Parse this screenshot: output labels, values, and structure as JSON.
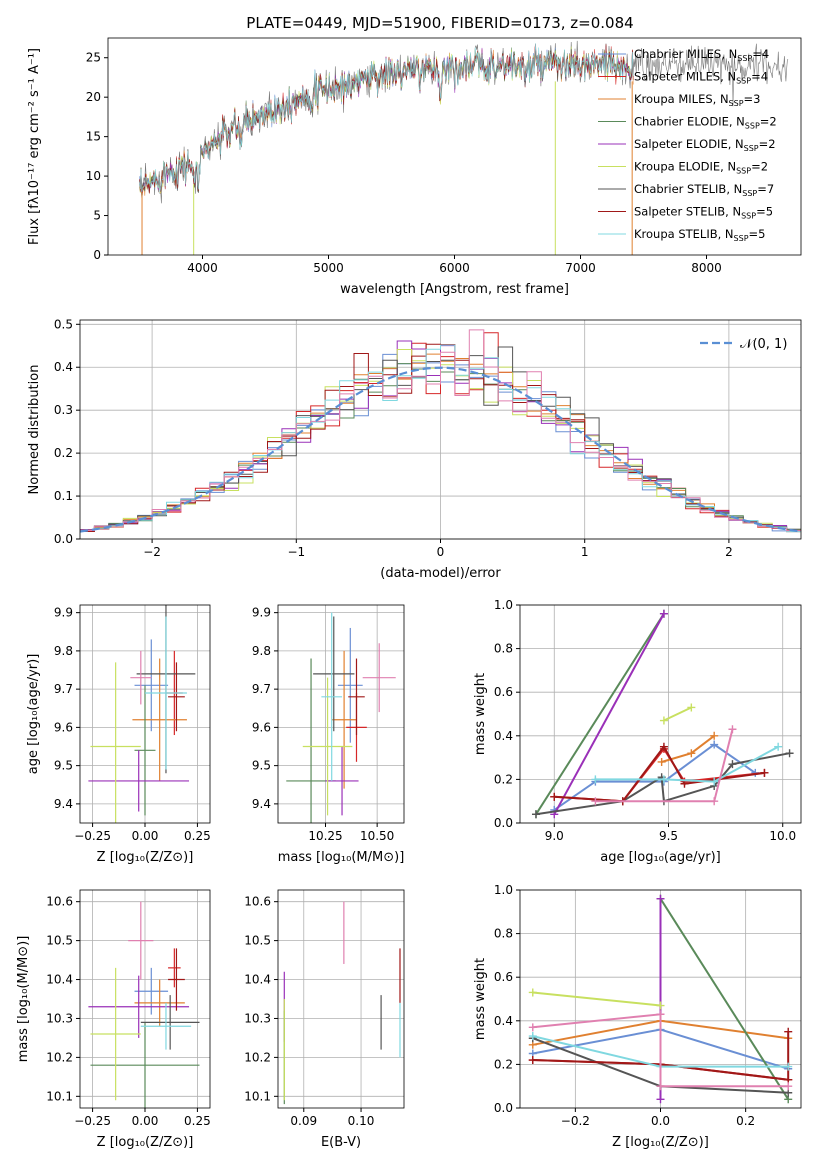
{
  "colors": {
    "Chabrier MILES": "#6a8fd4",
    "Salpeter MILES": "#d62728",
    "Kroupa MILES": "#e08030",
    "Chabrier ELODIE": "#5a8a5a",
    "Salpeter ELODIE": "#9a30b8",
    "Kroupa ELODIE": "#c8e060",
    "Chabrier STELIB": "#555555",
    "Salpeter STELIB": "#a01818",
    "Kroupa STELIB": "#80d8e0",
    "pink": "#e080b0",
    "gauss": "#5a8fd4"
  },
  "chart_data": [
    {
      "id": "spectrum",
      "type": "line",
      "title": "PLATE=0449, MJD=51900, FIBERID=0173, z=0.084",
      "xlabel": "wavelength [Angstrom, rest frame]",
      "ylabel": "Flux [fλ10⁻¹⁷ erg cm⁻² s⁻¹ A⁻¹]",
      "xlim": [
        3250,
        8750
      ],
      "ylim": [
        0,
        27.5
      ],
      "xticks": [
        4000,
        5000,
        6000,
        7000,
        8000
      ],
      "yticks": [
        0,
        5,
        10,
        15,
        20,
        25
      ],
      "grid": false,
      "legend_position": "top-right",
      "legend": [
        {
          "name": "Chabrier MILES",
          "sub": "N",
          "subscript": "SSP",
          "val": "=4"
        },
        {
          "name": "Salpeter MILES",
          "sub": "N",
          "subscript": "SSP",
          "val": "=4"
        },
        {
          "name": "Kroupa MILES",
          "sub": "N",
          "subscript": "SSP",
          "val": "=3"
        },
        {
          "name": "Chabrier ELODIE",
          "sub": "N",
          "subscript": "SSP",
          "val": "=2"
        },
        {
          "name": "Salpeter ELODIE",
          "sub": "N",
          "subscript": "SSP",
          "val": "=2"
        },
        {
          "name": "Kroupa ELODIE",
          "sub": "N",
          "subscript": "SSP",
          "val": "=2"
        },
        {
          "name": "Chabrier STELIB",
          "sub": "N",
          "subscript": "SSP",
          "val": "=7"
        },
        {
          "name": "Salpeter STELIB",
          "sub": "N",
          "subscript": "SSP",
          "val": "=5"
        },
        {
          "name": "Kroupa STELIB",
          "sub": "N",
          "subscript": "SSP",
          "val": "=5"
        }
      ],
      "continuum": [
        [
          3500,
          8.0
        ],
        [
          3700,
          10.5
        ],
        [
          3900,
          11.5
        ],
        [
          4000,
          13.0
        ],
        [
          4150,
          15.0
        ],
        [
          4300,
          16.5
        ],
        [
          4500,
          18.0
        ],
        [
          4700,
          19.5
        ],
        [
          4900,
          20.5
        ],
        [
          5100,
          21.5
        ],
        [
          5300,
          22.5
        ],
        [
          5500,
          23.0
        ],
        [
          5800,
          23.5
        ],
        [
          6000,
          23.8
        ],
        [
          6200,
          24.0
        ],
        [
          6500,
          24.0
        ],
        [
          6800,
          24.0
        ],
        [
          7100,
          24.0
        ],
        [
          7400,
          24.0
        ],
        [
          7700,
          24.0
        ],
        [
          8000,
          24.0
        ],
        [
          8300,
          24.0
        ],
        [
          8650,
          24.0
        ]
      ],
      "dips": [
        [
          3934,
          9.0
        ],
        [
          3968,
          8.5
        ],
        [
          4300,
          13.5
        ],
        [
          5175,
          20.5
        ],
        [
          5890,
          21.0
        ],
        [
          6563,
          22.5
        ]
      ],
      "spikes": [
        [
          6800,
          0
        ],
        [
          7410,
          0
        ]
      ],
      "model_range": [
        3500,
        7420
      ],
      "data_range": [
        3500,
        8650
      ]
    },
    {
      "id": "residuals",
      "type": "area",
      "xlabel": "(data-model)/error",
      "ylabel": "Normed distribution",
      "xlim": [
        -2.5,
        2.5
      ],
      "ylim": [
        0,
        0.51
      ],
      "xticks": [
        -2,
        -1,
        0,
        1,
        2
      ],
      "yticks": [
        0.0,
        0.1,
        0.2,
        0.3,
        0.4,
        0.5
      ],
      "grid": true,
      "legend_position": "top-right",
      "legend": [
        "𝒩(0, 1)"
      ],
      "bin_width": 0.1
    },
    {
      "id": "age-vs-Z",
      "type": "scatter",
      "xlabel": "Z [log₁₀(Z/Z⊙)]",
      "ylabel": "age  [log₁₀(age/yr)]",
      "xlim": [
        -0.31,
        0.31
      ],
      "ylim": [
        9.35,
        9.92
      ],
      "xticks": [
        -0.25,
        0.0,
        0.25
      ],
      "yticks": [
        9.4,
        9.5,
        9.6,
        9.7,
        9.8,
        9.9
      ],
      "points": [
        {
          "model": "Chabrier MILES",
          "x": 0.03,
          "xerr": 0.08,
          "y": 9.71,
          "yerr": 0.12
        },
        {
          "model": "Salpeter MILES",
          "x": 0.14,
          "xerr": 0.04,
          "y": 9.69,
          "yerr": 0.11
        },
        {
          "model": "Kroupa MILES",
          "x": 0.07,
          "xerr": 0.13,
          "y": 9.62,
          "yerr": 0.16
        },
        {
          "model": "Chabrier ELODIE",
          "x": 0.0,
          "xerr": 0.05,
          "y": 9.54,
          "yerr": 0.17
        },
        {
          "model": "Salpeter ELODIE",
          "x": -0.03,
          "xerr": 0.24,
          "y": 9.46,
          "yerr": 0.08
        },
        {
          "model": "Kroupa ELODIE",
          "x": -0.14,
          "xerr": 0.12,
          "y": 9.55,
          "yerr": 0.22
        },
        {
          "model": "Chabrier STELIB",
          "x": 0.1,
          "xerr": 0.14,
          "y": 9.74,
          "yerr": 0.26
        },
        {
          "model": "Salpeter STELIB",
          "x": 0.15,
          "xerr": 0.04,
          "y": 9.68,
          "yerr": 0.09
        },
        {
          "model": "Kroupa STELIB",
          "x": 0.1,
          "xerr": 0.1,
          "y": 9.69,
          "yerr": 0.2
        },
        {
          "model": "pink",
          "x": -0.02,
          "xerr": 0.05,
          "y": 9.73,
          "yerr": 0.07
        }
      ]
    },
    {
      "id": "age-vs-mass",
      "type": "scatter",
      "xlabel": "mass [log₁₀(M/M⊙)]",
      "ylabel": "",
      "xlim": [
        10.02,
        10.63
      ],
      "ylim": [
        9.35,
        9.92
      ],
      "xticks": [
        10.25,
        10.5
      ],
      "yticks": [
        9.4,
        9.5,
        9.6,
        9.7,
        9.8,
        9.9
      ],
      "points": [
        {
          "model": "Chabrier MILES",
          "x": 10.37,
          "xerr": 0.06,
          "y": 9.71,
          "yerr": 0.15
        },
        {
          "model": "Salpeter MILES",
          "x": 10.4,
          "xerr": 0.05,
          "y": 9.6,
          "yerr": 0.09
        },
        {
          "model": "Kroupa MILES",
          "x": 10.34,
          "xerr": 0.06,
          "y": 9.62,
          "yerr": 0.18
        },
        {
          "model": "Chabrier ELODIE",
          "x": 10.18,
          "xerr": 0.12,
          "y": 9.46,
          "yerr": 0.32
        },
        {
          "model": "Salpeter ELODIE",
          "x": 10.33,
          "xerr": 0.08,
          "y": 9.46,
          "yerr": 0.09
        },
        {
          "model": "Kroupa ELODIE",
          "x": 10.26,
          "xerr": 0.12,
          "y": 9.55,
          "yerr": 0.18
        },
        {
          "model": "Chabrier STELIB",
          "x": 10.29,
          "xerr": 0.1,
          "y": 9.74,
          "yerr": 0.15
        },
        {
          "model": "Salpeter STELIB",
          "x": 10.4,
          "xerr": 0.04,
          "y": 9.68,
          "yerr": 0.1
        },
        {
          "model": "Kroupa STELIB",
          "x": 10.28,
          "xerr": 0.05,
          "y": 9.68,
          "yerr": 0.22
        },
        {
          "model": "pink",
          "x": 10.51,
          "xerr": 0.08,
          "y": 9.73,
          "yerr": 0.09
        }
      ]
    },
    {
      "id": "weight-vs-age",
      "type": "line",
      "xlabel": "age  [log₁₀(age/yr)]",
      "ylabel": "mass weight",
      "xlim": [
        8.85,
        10.08
      ],
      "ylim": [
        0.0,
        1.0
      ],
      "xticks": [
        9.0,
        9.5,
        10.0
      ],
      "yticks": [
        0.0,
        0.2,
        0.4,
        0.6,
        0.8,
        1.0
      ],
      "grid": true,
      "series": [
        {
          "model": "Chabrier MILES",
          "points": [
            [
              9.0,
              0.06
            ],
            [
              9.18,
              0.19
            ],
            [
              9.48,
              0.19
            ],
            [
              9.7,
              0.36
            ],
            [
              9.88,
              0.23
            ]
          ]
        },
        {
          "model": "Salpeter MILES",
          "points": [
            [
              9.0,
              0.12
            ],
            [
              9.3,
              0.1
            ],
            [
              9.48,
              0.34
            ],
            [
              9.57,
              0.19
            ],
            [
              9.92,
              0.23
            ]
          ]
        },
        {
          "model": "Kroupa MILES",
          "points": [
            [
              9.47,
              0.28
            ],
            [
              9.6,
              0.32
            ],
            [
              9.7,
              0.4
            ]
          ]
        },
        {
          "model": "Chabrier ELODIE",
          "points": [
            [
              8.92,
              0.04
            ],
            [
              9.48,
              0.96
            ]
          ]
        },
        {
          "model": "Salpeter ELODIE",
          "points": [
            [
              9.0,
              0.04
            ],
            [
              9.48,
              0.96
            ]
          ]
        },
        {
          "model": "Kroupa ELODIE",
          "points": [
            [
              9.48,
              0.47
            ],
            [
              9.6,
              0.53
            ]
          ]
        },
        {
          "model": "Chabrier STELIB",
          "points": [
            [
              8.92,
              0.04
            ],
            [
              9.3,
              0.1
            ],
            [
              9.47,
              0.21
            ],
            [
              9.48,
              0.1
            ],
            [
              9.7,
              0.17
            ],
            [
              9.78,
              0.27
            ],
            [
              10.03,
              0.32
            ]
          ]
        },
        {
          "model": "Salpeter STELIB",
          "points": [
            [
              9.0,
              0.12
            ],
            [
              9.3,
              0.1
            ],
            [
              9.48,
              0.35
            ],
            [
              9.57,
              0.18
            ],
            [
              9.92,
              0.23
            ]
          ]
        },
        {
          "model": "Kroupa STELIB",
          "points": [
            [
              9.18,
              0.2
            ],
            [
              9.48,
              0.2
            ],
            [
              9.7,
              0.19
            ],
            [
              9.98,
              0.35
            ]
          ]
        },
        {
          "model": "pink",
          "points": [
            [
              9.18,
              0.1
            ],
            [
              9.7,
              0.1
            ],
            [
              9.78,
              0.43
            ]
          ]
        }
      ]
    },
    {
      "id": "mass-vs-Z",
      "type": "scatter",
      "xlabel": "Z [log₁₀(Z/Z⊙)]",
      "ylabel": "mass [log₁₀(M/M⊙)]",
      "xlim": [
        -0.31,
        0.31
      ],
      "ylim": [
        10.07,
        10.63
      ],
      "xticks": [
        -0.25,
        0.0,
        0.25
      ],
      "yticks": [
        10.1,
        10.2,
        10.3,
        10.4,
        10.5,
        10.6
      ],
      "points": [
        {
          "model": "Chabrier MILES",
          "x": 0.03,
          "xerr": 0.08,
          "y": 10.37,
          "yerr": 0.06
        },
        {
          "model": "Salpeter MILES",
          "x": 0.14,
          "xerr": 0.03,
          "y": 10.43,
          "yerr": 0.05
        },
        {
          "model": "Kroupa MILES",
          "x": 0.07,
          "xerr": 0.12,
          "y": 10.34,
          "yerr": 0.06
        },
        {
          "model": "Chabrier ELODIE",
          "x": 0.0,
          "xerr": 0.26,
          "y": 10.18,
          "yerr": 0.11
        },
        {
          "model": "Salpeter ELODIE",
          "x": -0.03,
          "xerr": 0.24,
          "y": 10.33,
          "yerr": 0.08
        },
        {
          "model": "Kroupa ELODIE",
          "x": -0.14,
          "xerr": 0.12,
          "y": 10.26,
          "yerr": 0.17
        },
        {
          "model": "Chabrier STELIB",
          "x": 0.12,
          "xerr": 0.14,
          "y": 10.29,
          "yerr": 0.07
        },
        {
          "model": "Salpeter STELIB",
          "x": 0.15,
          "xerr": 0.04,
          "y": 10.4,
          "yerr": 0.08
        },
        {
          "model": "Kroupa STELIB",
          "x": 0.1,
          "xerr": 0.12,
          "y": 10.28,
          "yerr": 0.06
        },
        {
          "model": "pink",
          "x": -0.02,
          "xerr": 0.06,
          "y": 10.5,
          "yerr": 0.1
        }
      ]
    },
    {
      "id": "mass-vs-EBV",
      "type": "scatter",
      "xlabel": "E(B-V)",
      "ylabel": "",
      "xlim": [
        0.0855,
        0.1075
      ],
      "ylim": [
        10.07,
        10.63
      ],
      "xticks": [
        0.09,
        0.1
      ],
      "yticks": [
        10.1,
        10.2,
        10.3,
        10.4,
        10.5,
        10.6
      ],
      "points": [
        {
          "model": "Salpeter ELODIE",
          "x": 0.0866,
          "y": 10.33,
          "yerr": 0.09
        },
        {
          "model": "Chabrier ELODIE",
          "x": 0.0866,
          "y": 10.2,
          "yerr": 0.12
        },
        {
          "model": "Kroupa ELODIE",
          "x": 0.0866,
          "y": 10.22,
          "yerr": 0.13
        },
        {
          "model": "pink",
          "x": 0.097,
          "y": 10.52,
          "yerr": 0.08
        },
        {
          "model": "Chabrier STELIB",
          "x": 0.1035,
          "y": 10.29,
          "yerr": 0.07
        },
        {
          "model": "Salpeter STELIB",
          "x": 0.1068,
          "y": 10.41,
          "yerr": 0.07
        },
        {
          "model": "Kroupa STELIB",
          "x": 0.1068,
          "y": 10.27,
          "yerr": 0.07
        }
      ]
    },
    {
      "id": "weight-vs-Z",
      "type": "line",
      "xlabel": "Z [log₁₀(Z/Z⊙)]",
      "ylabel": "mass weight",
      "xlim": [
        -0.33,
        0.33
      ],
      "ylim": [
        0.0,
        1.0
      ],
      "xticks": [
        -0.2,
        0.0,
        0.2
      ],
      "yticks": [
        0.0,
        0.2,
        0.4,
        0.6,
        0.8,
        1.0
      ],
      "grid": true,
      "series": [
        {
          "model": "Chabrier MILES",
          "points": [
            [
              -0.3,
              0.25
            ],
            [
              0.0,
              0.36
            ],
            [
              0.3,
              0.18
            ]
          ]
        },
        {
          "model": "Salpeter MILES",
          "points": [
            [
              -0.3,
              0.22
            ],
            [
              0.0,
              0.2
            ],
            [
              0.3,
              0.13
            ]
          ]
        },
        {
          "model": "Kroupa MILES",
          "points": [
            [
              -0.3,
              0.29
            ],
            [
              0.0,
              0.4
            ],
            [
              0.3,
              0.32
            ]
          ]
        },
        {
          "model": "Chabrier ELODIE",
          "points": [
            [
              0.0,
              0.96
            ],
            [
              0.3,
              0.04
            ]
          ]
        },
        {
          "model": "Salpeter ELODIE",
          "points": [
            [
              0.0,
              0.04
            ],
            [
              0.0,
              0.96
            ]
          ]
        },
        {
          "model": "Kroupa ELODIE",
          "points": [
            [
              -0.3,
              0.53
            ],
            [
              0.0,
              0.47
            ]
          ]
        },
        {
          "model": "Chabrier STELIB",
          "points": [
            [
              -0.3,
              0.32
            ],
            [
              0.0,
              0.1
            ],
            [
              0.3,
              0.07
            ]
          ]
        },
        {
          "model": "Salpeter STELIB",
          "points": [
            [
              -0.3,
              0.22
            ],
            [
              0.0,
              0.2
            ],
            [
              0.3,
              0.13
            ],
            [
              0.3,
              0.35
            ]
          ]
        },
        {
          "model": "Kroupa STELIB",
          "points": [
            [
              -0.3,
              0.33
            ],
            [
              0.0,
              0.19
            ],
            [
              0.3,
              0.19
            ]
          ]
        },
        {
          "model": "pink",
          "points": [
            [
              -0.3,
              0.37
            ],
            [
              0.0,
              0.43
            ],
            [
              0.0,
              0.1
            ],
            [
              0.3,
              0.1
            ]
          ]
        }
      ]
    }
  ]
}
